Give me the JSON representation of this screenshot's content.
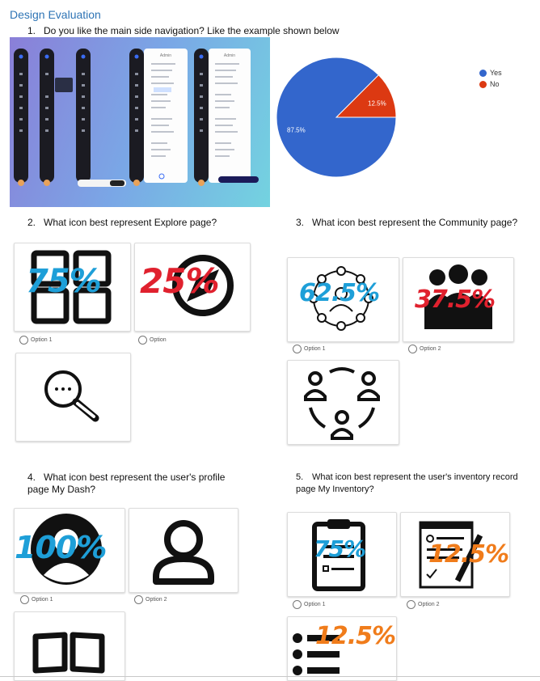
{
  "title": "Design Evaluation",
  "questions": {
    "q1": {
      "num": "1.",
      "text": "Do you like the main side navigation? Like the example shown below"
    },
    "q2": {
      "num": "2.",
      "text": "What icon best represent Explore page?"
    },
    "q3": {
      "num": "3.",
      "text": "What icon best represent the Community page?"
    },
    "q4": {
      "num": "4.",
      "text": "What icon best represent the user's profile page My Dash?"
    },
    "q5": {
      "num": "5.",
      "text": "What icon best represent the user's inventory record page My Inventory?"
    }
  },
  "nav_screenshot": {
    "panel_title": "Admin"
  },
  "chart_data": {
    "type": "pie",
    "categories": [
      "Yes",
      "No"
    ],
    "values": [
      87.5,
      12.5
    ],
    "data_labels": [
      "87.5%",
      "12.5%"
    ],
    "colors": {
      "Yes": "#3366cc",
      "No": "#dc3912"
    },
    "legend": "top-right"
  },
  "q2_options": [
    {
      "label": "Option 1",
      "icon": "grid-icon",
      "handwritten": "75%",
      "color": "#1e9fd8"
    },
    {
      "label": "Option",
      "icon": "compass-icon",
      "handwritten": "25%",
      "color": "#e0212e"
    },
    {
      "label": "",
      "icon": "magnifier-icon",
      "handwritten": "",
      "color": ""
    }
  ],
  "q3_options": [
    {
      "label": "Option 1",
      "icon": "network-people-icon",
      "handwritten": "62.5%",
      "color": "#1e9fd8"
    },
    {
      "label": "Option 2",
      "icon": "group-icon",
      "handwritten": "37.5%",
      "color": "#e0212e"
    },
    {
      "label": "",
      "icon": "people-cycle-icon",
      "handwritten": "",
      "color": ""
    }
  ],
  "q4_options": [
    {
      "label": "Option 1",
      "icon": "profile-circle-icon",
      "handwritten": "100%",
      "color": "#1e9fd8"
    },
    {
      "label": "Option 2",
      "icon": "user-outline-icon",
      "handwritten": "",
      "color": ""
    },
    {
      "label": "",
      "icon": "book-icon",
      "handwritten": "",
      "color": ""
    }
  ],
  "q5_options": [
    {
      "label": "Option 1",
      "icon": "clipboard-icon",
      "handwritten": "75%",
      "color": "#1e9fd8"
    },
    {
      "label": "Option 2",
      "icon": "checklist-pen-icon",
      "handwritten": "12.5%",
      "color": "#f07c1b"
    },
    {
      "label": "",
      "icon": "bullet-list-icon",
      "handwritten": "12.5%",
      "color": "#f07c1b"
    }
  ]
}
